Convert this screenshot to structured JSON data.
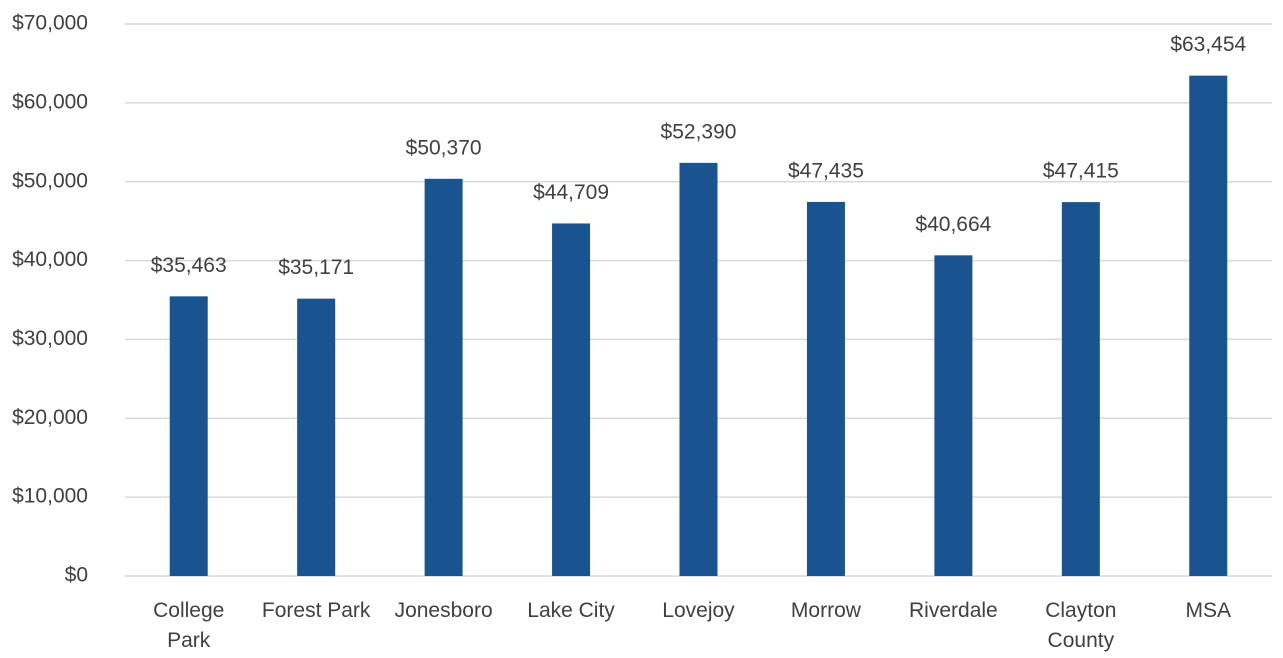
{
  "chart_data": {
    "type": "bar",
    "categories": [
      "College Park",
      "Forest Park",
      "Jonesboro",
      "Lake City",
      "Lovejoy",
      "Morrow",
      "Riverdale",
      "Clayton County",
      "MSA"
    ],
    "values": [
      35463,
      35171,
      50370,
      44709,
      52390,
      47435,
      40664,
      47415,
      63454
    ],
    "value_labels": [
      "$35,463",
      "$35,171",
      "$50,370",
      "$44,709",
      "$52,390",
      "$47,435",
      "$40,664",
      "$47,415",
      "$63,454"
    ],
    "color": "#1a5490",
    "ylim": [
      0,
      70000
    ],
    "yticks": [
      {
        "value": 0,
        "label": "$0"
      },
      {
        "value": 10000,
        "label": "$10,000"
      },
      {
        "value": 20000,
        "label": "$20,000"
      },
      {
        "value": 30000,
        "label": "$30,000"
      },
      {
        "value": 40000,
        "label": "$40,000"
      },
      {
        "value": 50000,
        "label": "$50,000"
      },
      {
        "value": 60000,
        "label": "$60,000"
      },
      {
        "value": 70000,
        "label": "$70,000"
      }
    ],
    "grid": true
  }
}
